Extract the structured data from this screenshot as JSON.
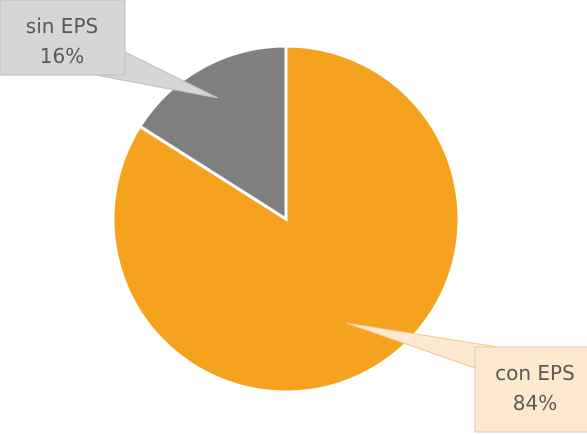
{
  "chart_data": {
    "type": "pie",
    "categories": [
      "con EPS",
      "sin EPS"
    ],
    "values": [
      84,
      16
    ],
    "value_labels": [
      "84%",
      "16%"
    ],
    "colors": [
      "#f5a31f",
      "#7f7f7f"
    ]
  }
}
